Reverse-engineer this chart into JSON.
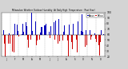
{
  "title": "Milwaukee Weather Outdoor Humidity  At Daily High  Temperature  (Past Year)",
  "background_color": "#d4d4d4",
  "plot_bg_color": "#ffffff",
  "bar_above_color": "#0000bb",
  "bar_below_color": "#cc0000",
  "avg_line_color": "#000000",
  "dot_above_color": "#0000bb",
  "dot_below_color": "#cc0000",
  "ylim": [
    20,
    100
  ],
  "ytick_values": [
    20,
    30,
    40,
    50,
    60,
    70,
    80,
    90,
    100
  ],
  "n_points": 365,
  "seed": 42,
  "num_month_dividers": 12,
  "avg_humidity": 60
}
